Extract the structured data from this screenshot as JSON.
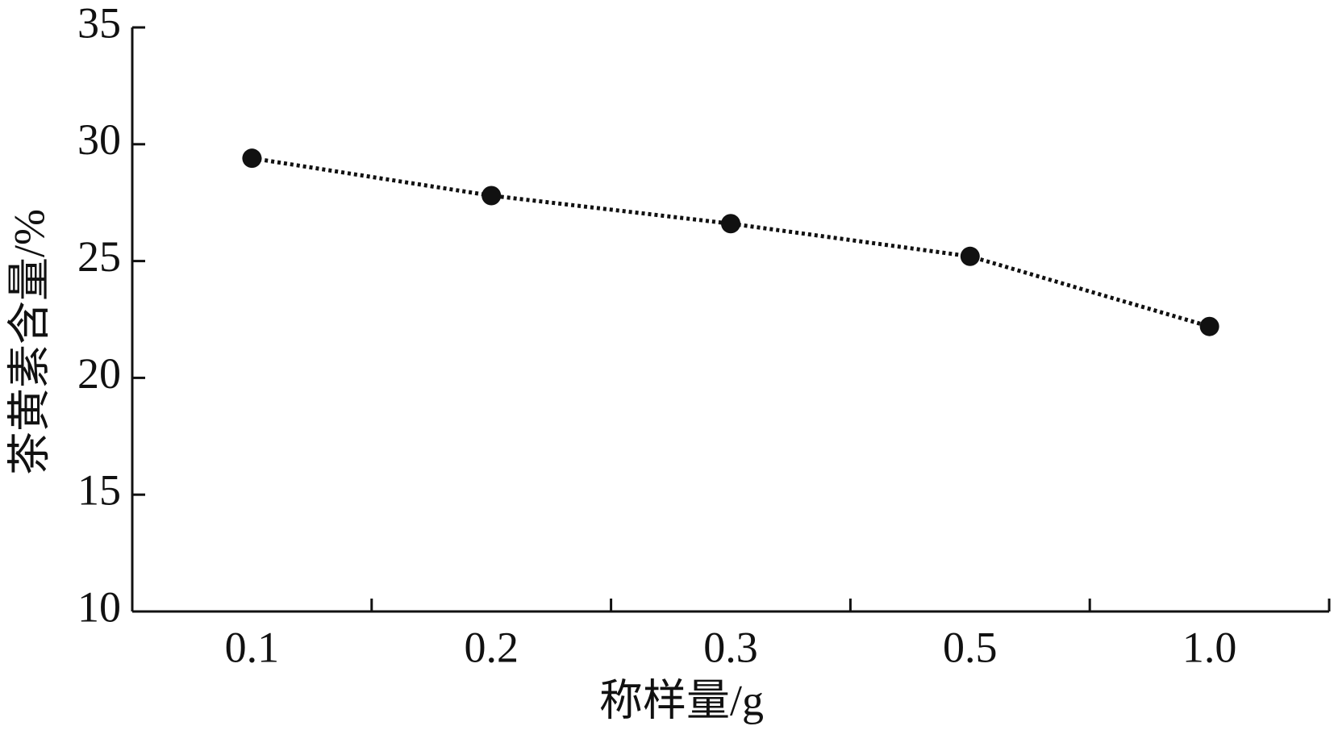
{
  "chart_data": {
    "type": "line",
    "xlabel": "称样量/g",
    "ylabel": "茶黄素含量/%",
    "categories": [
      "0.1",
      "0.2",
      "0.3",
      "0.5",
      "1.0"
    ],
    "values": [
      29.4,
      27.8,
      26.6,
      25.2,
      22.2
    ],
    "color": "#111111",
    "ylim": [
      10,
      35
    ],
    "yticks": [
      10,
      15,
      20,
      25,
      30,
      35
    ],
    "grid": false
  }
}
